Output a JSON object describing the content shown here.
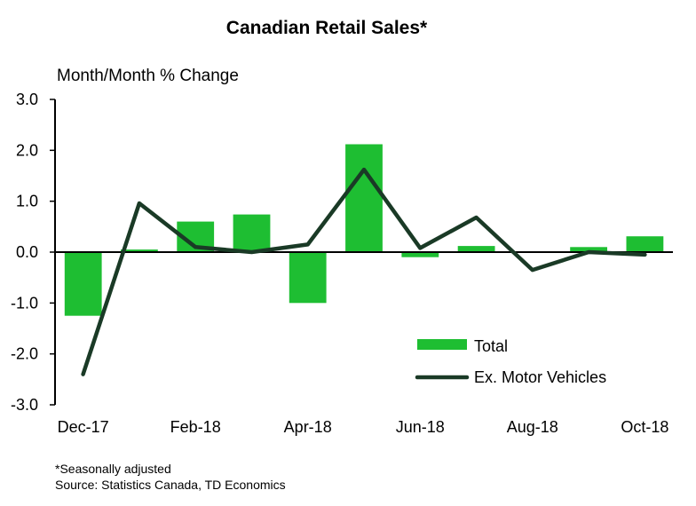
{
  "chart_data": {
    "type": "bar",
    "title": "Canadian Retail Sales*",
    "ylabel": "Month/Month % Change",
    "xlabel": "",
    "ylim": [
      -3.0,
      3.0
    ],
    "yticks": [
      "3.0",
      "2.0",
      "1.0",
      "0.0",
      "-1.0",
      "-2.0",
      "-3.0"
    ],
    "categories": [
      "Dec-17",
      "Jan-18",
      "Feb-18",
      "Mar-18",
      "Apr-18",
      "May-18",
      "Jun-18",
      "Jul-18",
      "Aug-18",
      "Sep-18",
      "Oct-18"
    ],
    "xtick_labels": [
      "Dec-17",
      "",
      "Feb-18",
      "",
      "Apr-18",
      "",
      "Jun-18",
      "",
      "Aug-18",
      "",
      "Oct-18"
    ],
    "series": [
      {
        "name": "Total",
        "kind": "bar",
        "color": "#1ebe32",
        "values": [
          -1.25,
          0.05,
          0.6,
          0.74,
          -1.0,
          2.12,
          -0.1,
          0.12,
          0.0,
          0.1,
          0.31
        ]
      },
      {
        "name": "Ex. Motor Vehicles",
        "kind": "line",
        "color": "#1a3a26",
        "values": [
          -2.4,
          0.96,
          0.1,
          0.0,
          0.15,
          1.62,
          0.08,
          0.68,
          -0.35,
          0.0,
          -0.05
        ]
      }
    ],
    "legend": {
      "position": "bottom-right",
      "items": [
        "Total",
        "Ex. Motor Vehicles"
      ]
    }
  },
  "footnote": {
    "line1": "*Seasonally adjusted",
    "line2": "Source: Statistics Canada, TD Economics"
  }
}
